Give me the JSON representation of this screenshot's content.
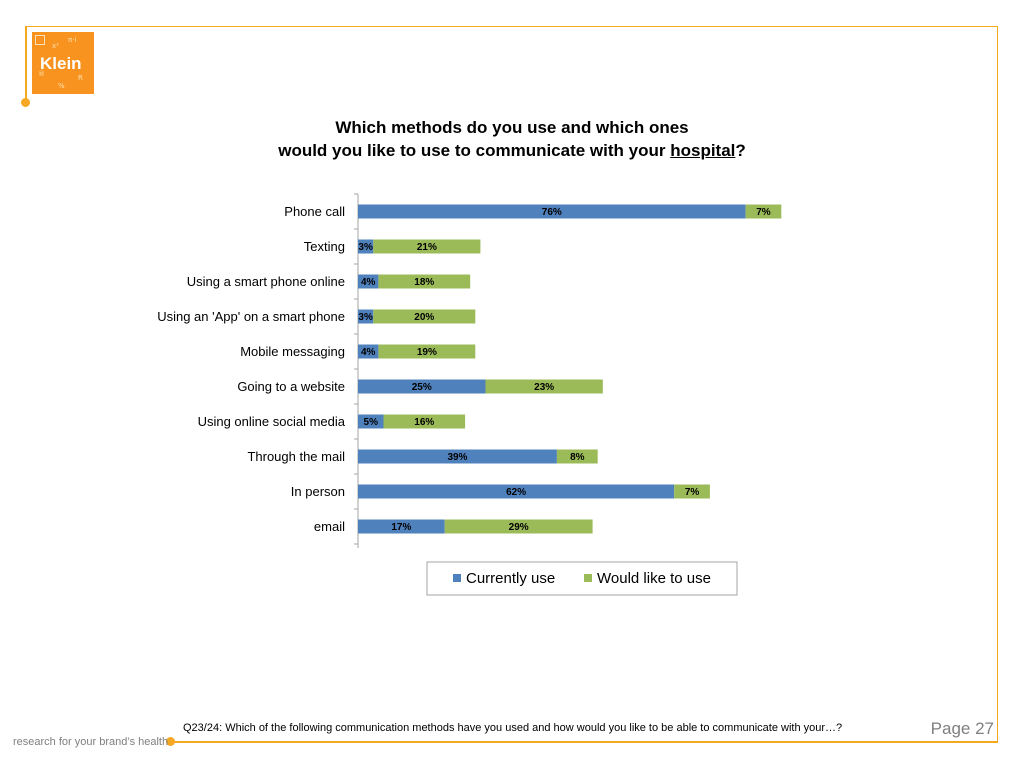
{
  "logo": {
    "text": "Klein"
  },
  "title": {
    "line1": "Which methods do you use and which ones",
    "line2_prefix": "would you like to use to communicate with your ",
    "line2_underlined": "hospital",
    "line2_suffix": "?"
  },
  "footnote": "Q23/24:  Which of the following communication methods have you used and how would you like to be able to communicate with your…?",
  "page_label": "Page 27",
  "tagline": "research for your brand’s health",
  "colors": {
    "accent": "#f7a823",
    "currently_use": "#4f81bd",
    "would_like": "#9bbb59"
  },
  "chart_data": {
    "type": "bar",
    "orientation": "horizontal",
    "stacked": true,
    "categories": [
      "Phone call",
      "Texting",
      "Using a smart phone online",
      "Using an 'App' on a smart phone",
      "Mobile messaging",
      "Going to a website",
      "Using online social media",
      "Through the mail",
      "In person",
      "email"
    ],
    "series": [
      {
        "name": "Currently use",
        "color": "#4f81bd",
        "values": [
          76,
          3,
          4,
          3,
          4,
          25,
          5,
          39,
          62,
          17
        ]
      },
      {
        "name": "Would like to use",
        "color": "#9bbb59",
        "values": [
          7,
          21,
          18,
          20,
          19,
          23,
          16,
          8,
          7,
          29
        ]
      }
    ],
    "value_suffix": "%",
    "xlim": [
      0,
      100
    ],
    "legend_position": "bottom"
  }
}
